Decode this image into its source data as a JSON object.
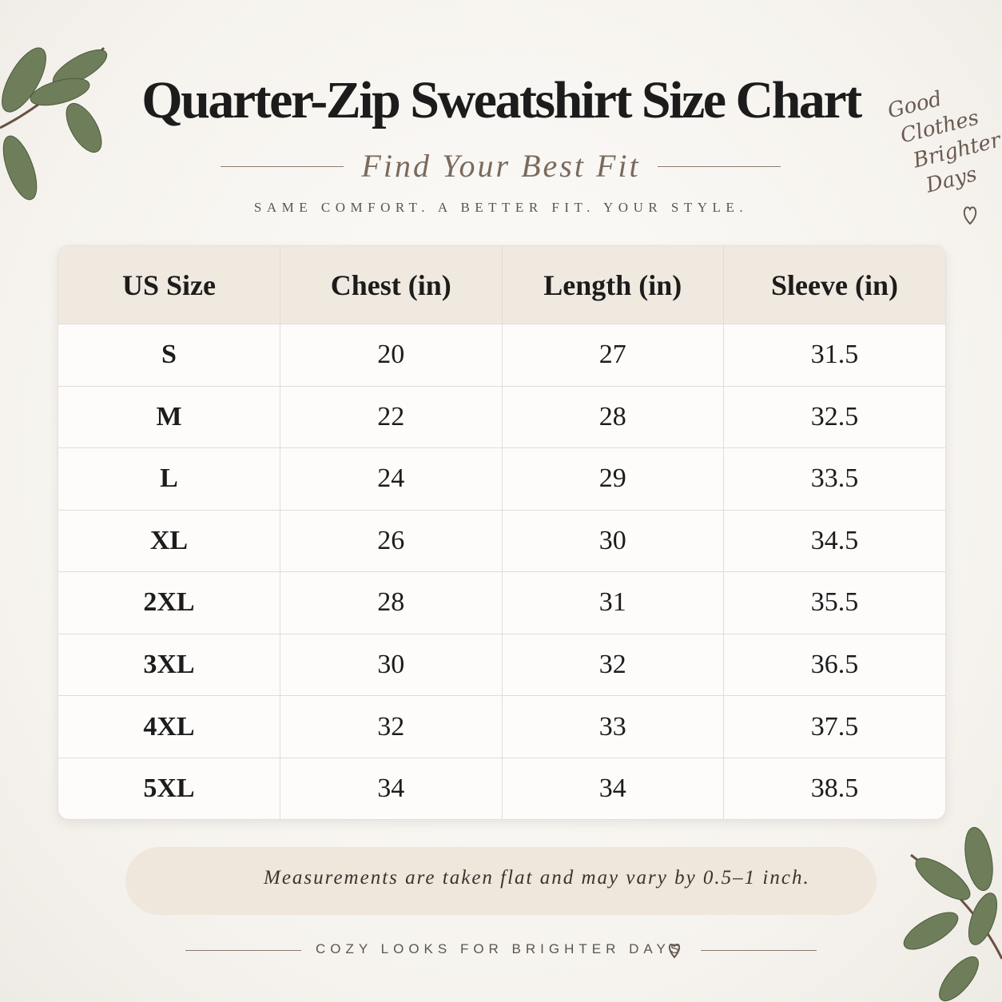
{
  "header": {
    "title": "Quarter-Zip Sweatshirt Size Chart",
    "subtitle": "Find Your Best Fit",
    "tagline": "SAME COMFORT. A BETTER FIT. YOUR STYLE.",
    "badge": [
      "Good",
      "Clothes",
      "Brighter",
      "Days"
    ]
  },
  "table": {
    "columns": [
      "US Size",
      "Chest (in)",
      "Length (in)",
      "Sleeve (in)"
    ],
    "rows": [
      [
        "S",
        20,
        27,
        31.5
      ],
      [
        "M",
        22,
        28,
        32.5
      ],
      [
        "L",
        24,
        29,
        33.5
      ],
      [
        "XL",
        26,
        30,
        34.5
      ],
      [
        "2XL",
        28,
        31,
        35.5
      ],
      [
        "3XL",
        30,
        32,
        36.5
      ],
      [
        "4XL",
        32,
        33,
        37.5
      ],
      [
        "5XL",
        34,
        34,
        38.5
      ]
    ]
  },
  "note": "Measurements are taken flat and may vary by 0.5–1 inch.",
  "footer": "COZY LOOKS FOR BRIGHTER DAYS"
}
